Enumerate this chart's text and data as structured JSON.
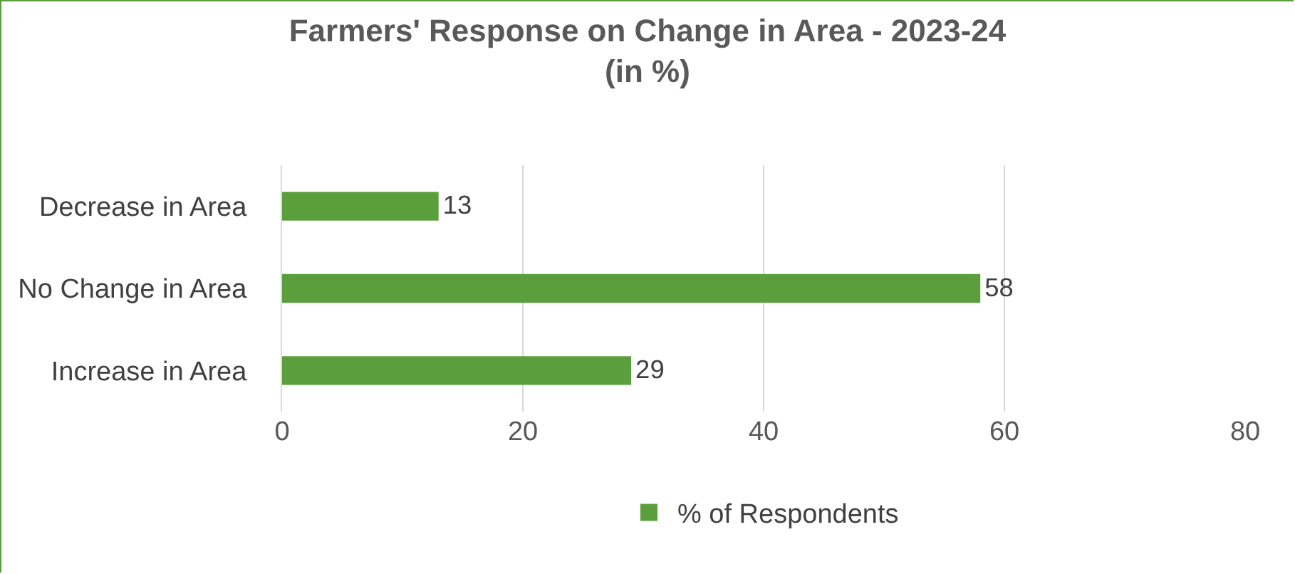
{
  "chart_data": {
    "type": "bar",
    "orientation": "horizontal",
    "title": "Farmers' Response on Change in Area - 2023-24\n(in %)",
    "categories": [
      "Decrease in Area",
      "No Change in Area",
      "Increase in Area"
    ],
    "series": [
      {
        "name": "% of Respondents",
        "color": "#5b9f3c",
        "values": [
          13,
          58,
          29
        ]
      }
    ],
    "xlim": [
      0,
      80
    ],
    "xticks": [
      0,
      20,
      40,
      60,
      80
    ],
    "grid": "x",
    "legend": "bottom",
    "data_labels": true
  }
}
